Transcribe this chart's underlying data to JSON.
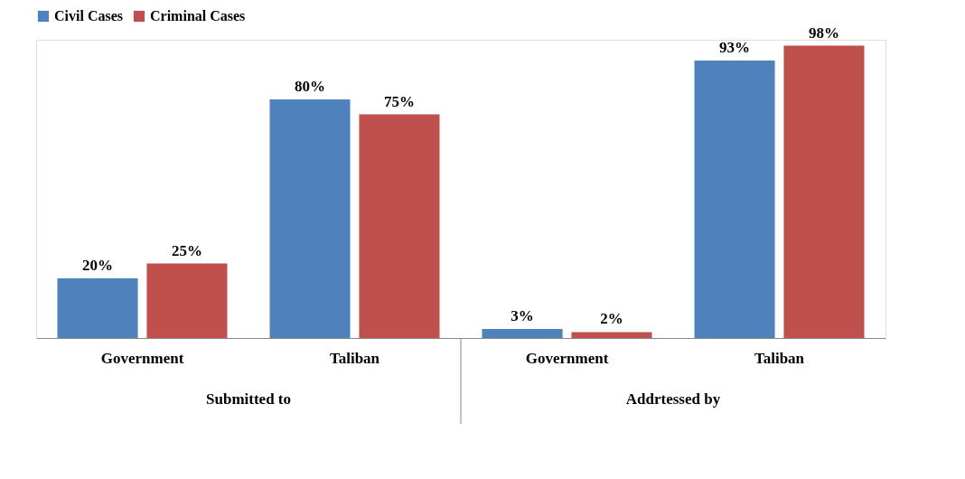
{
  "chart_data": {
    "type": "bar",
    "categories": [
      "Government",
      "Taliban",
      "Government",
      "Taliban"
    ],
    "series": [
      {
        "name": "Civil Cases",
        "color": "#4f81bd",
        "values": [
          20,
          80,
          3,
          93
        ],
        "value_labels": [
          "20%",
          "80%",
          "3%",
          "93%"
        ]
      },
      {
        "name": "Criminal Cases",
        "color": "#c0504d",
        "values": [
          25,
          75,
          2,
          98
        ],
        "value_labels": [
          "25%",
          "75%",
          "2%",
          "98%"
        ]
      }
    ],
    "annotations": [
      "Submitted to",
      "Addrtessed by"
    ],
    "legend": "top",
    "grid": false
  }
}
